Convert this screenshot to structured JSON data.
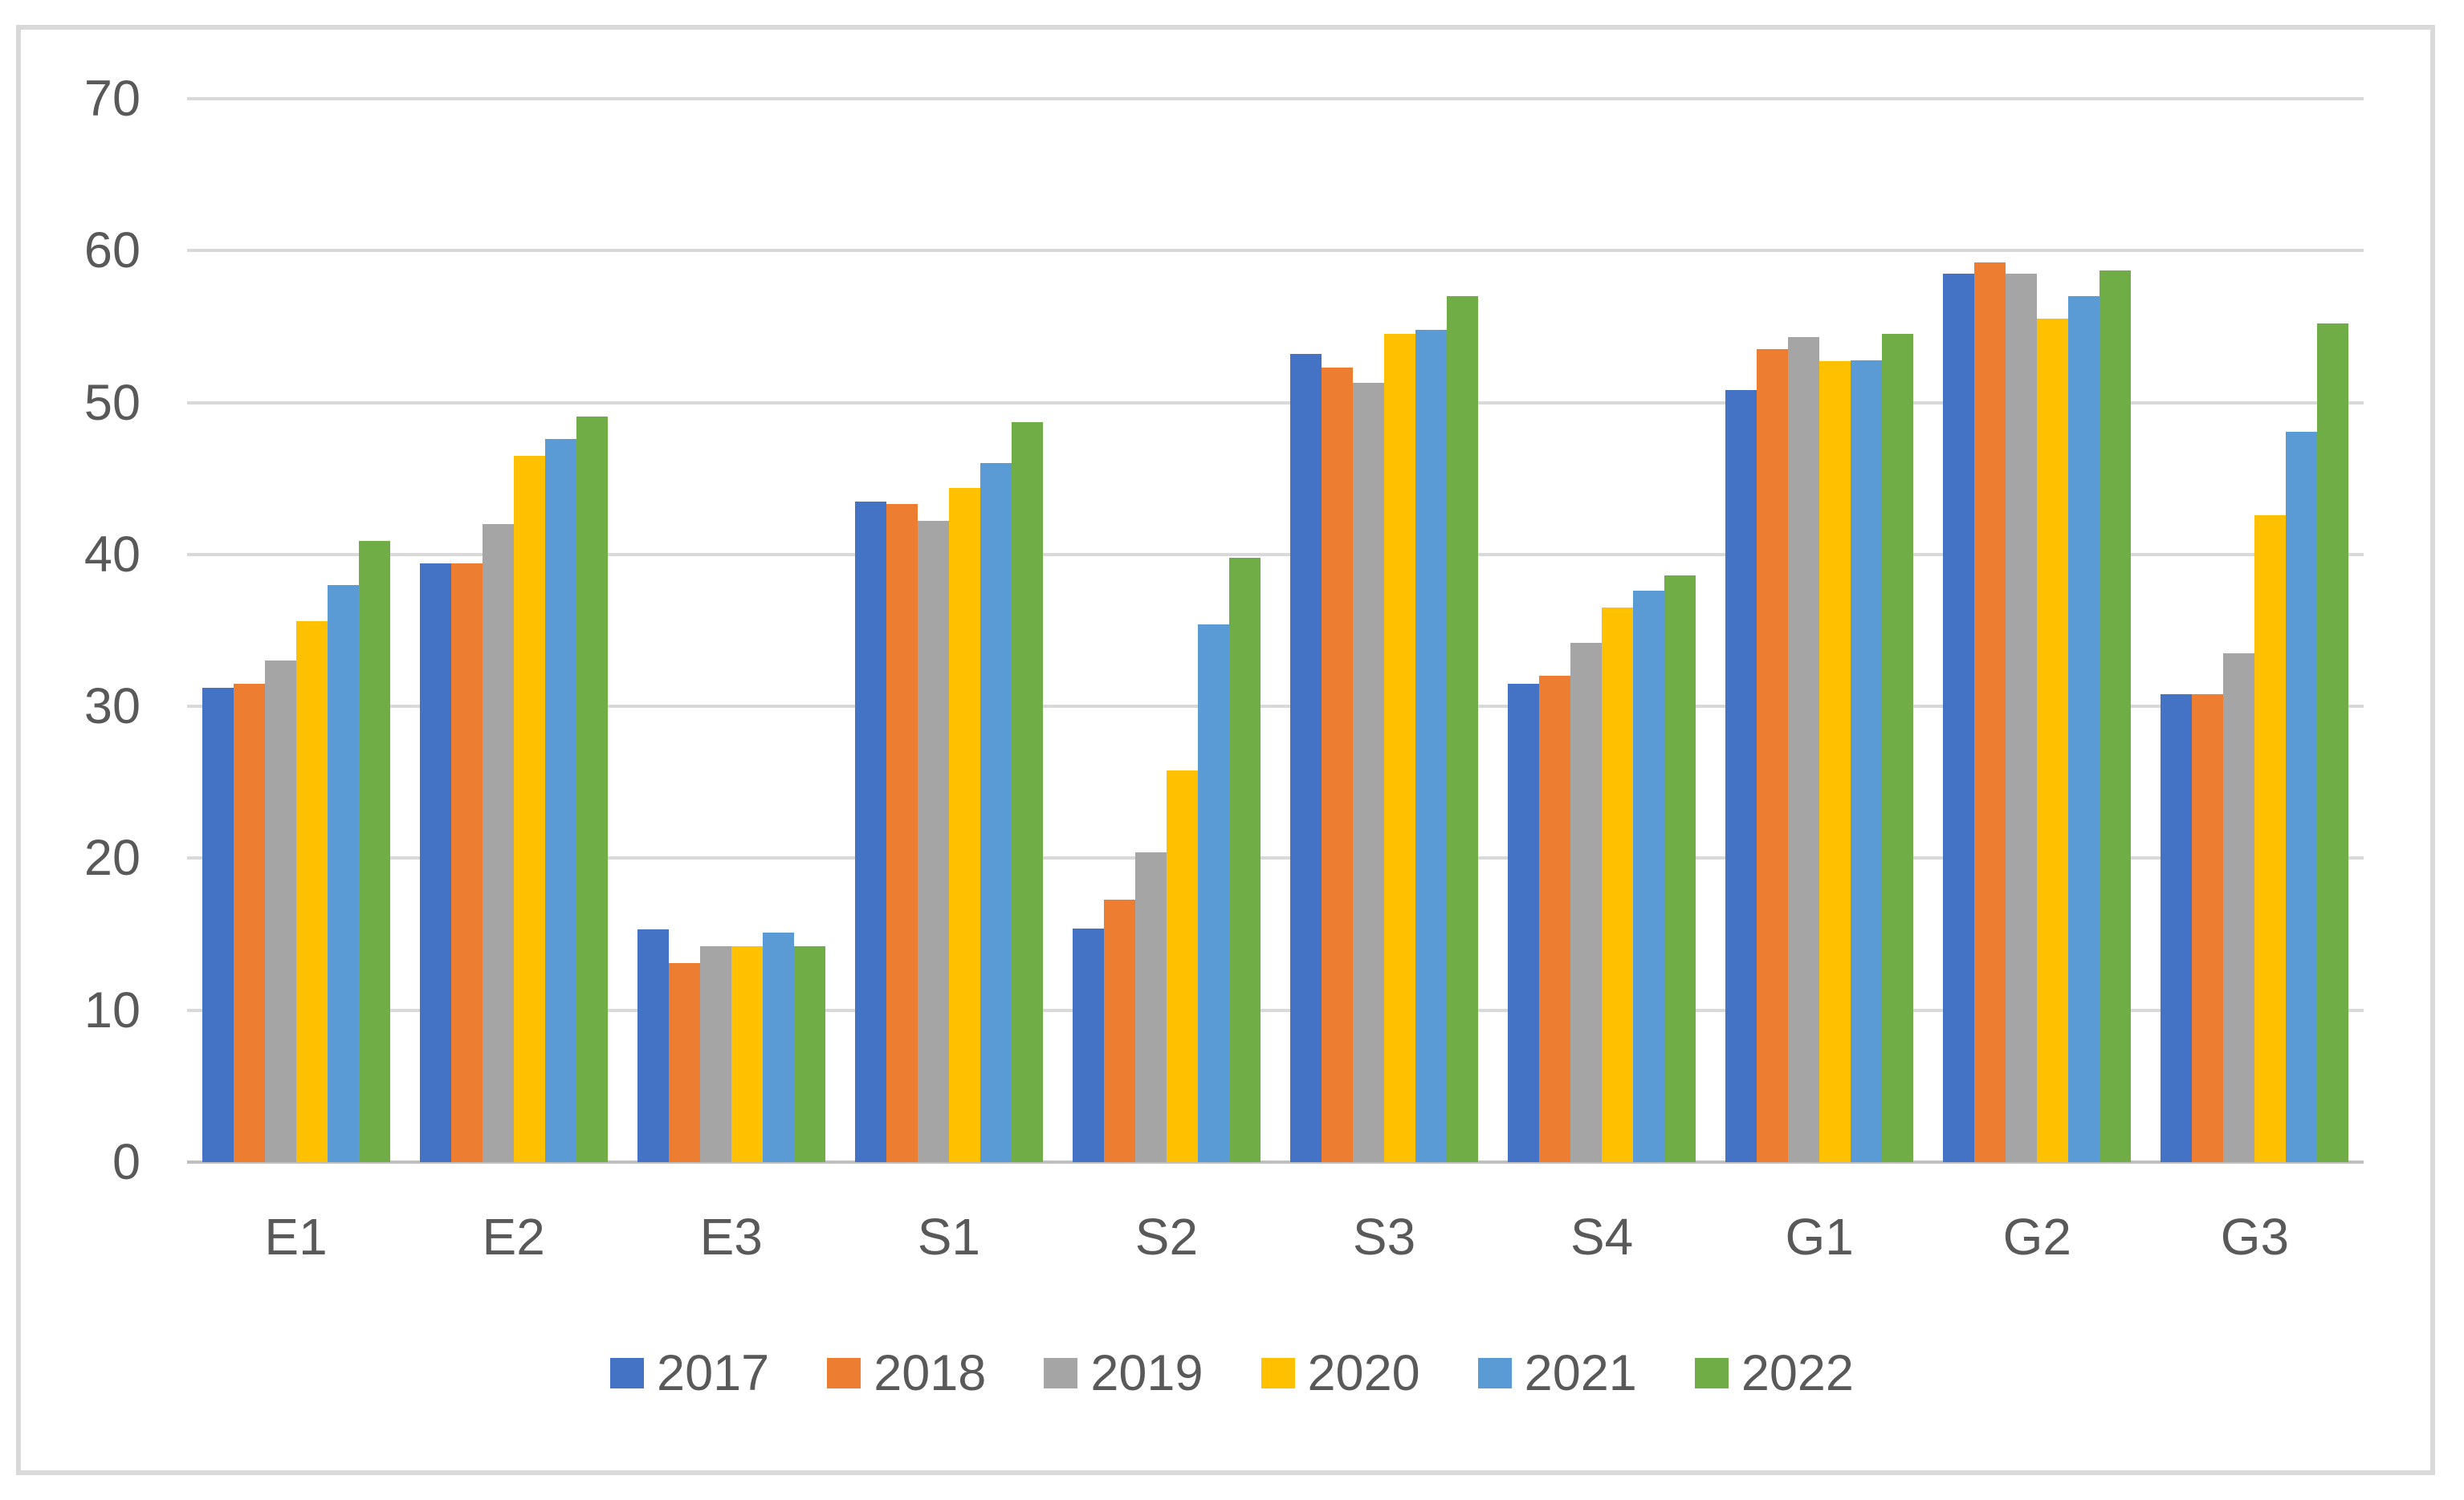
{
  "chart_data": {
    "type": "bar",
    "title": "",
    "xlabel": "",
    "ylabel": "",
    "categories": [
      "E1",
      "E2",
      "E3",
      "S1",
      "S2",
      "S3",
      "S4",
      "G1",
      "G2",
      "G3"
    ],
    "series": [
      {
        "name": "2017",
        "color": "#4472C4",
        "values": [
          31.2,
          39.4,
          15.3,
          43.5,
          15.4,
          53.2,
          31.5,
          50.8,
          58.5,
          30.8
        ]
      },
      {
        "name": "2018",
        "color": "#ED7D31",
        "values": [
          31.5,
          39.4,
          13.1,
          43.3,
          17.3,
          52.3,
          32.0,
          53.5,
          59.2,
          30.8
        ]
      },
      {
        "name": "2019",
        "color": "#A5A5A5",
        "values": [
          33.0,
          42.0,
          14.2,
          42.2,
          20.4,
          51.3,
          34.2,
          54.3,
          58.5,
          33.5
        ]
      },
      {
        "name": "2020",
        "color": "#FFC000",
        "values": [
          35.6,
          46.5,
          14.2,
          44.4,
          25.8,
          54.5,
          36.5,
          52.7,
          55.5,
          42.6
        ]
      },
      {
        "name": "2021",
        "color": "#5B9BD5",
        "values": [
          38.0,
          47.6,
          15.1,
          46.0,
          35.4,
          54.8,
          37.6,
          52.8,
          57.0,
          48.1
        ]
      },
      {
        "name": "2022",
        "color": "#70AD47",
        "values": [
          40.9,
          49.1,
          14.2,
          48.7,
          39.8,
          57.0,
          38.6,
          54.5,
          58.7,
          55.2
        ]
      }
    ],
    "ylim": [
      0,
      70
    ],
    "yticks": [
      0,
      10,
      20,
      30,
      40,
      50,
      60,
      70
    ],
    "grid": true,
    "legend_position": "bottom"
  },
  "styles": {
    "grid_color": "#D9D9D9",
    "axis_line_color": "#BFBFBF",
    "frame_border_color": "#D9D9D9",
    "text_color": "#595959",
    "background": "#FFFFFF"
  }
}
